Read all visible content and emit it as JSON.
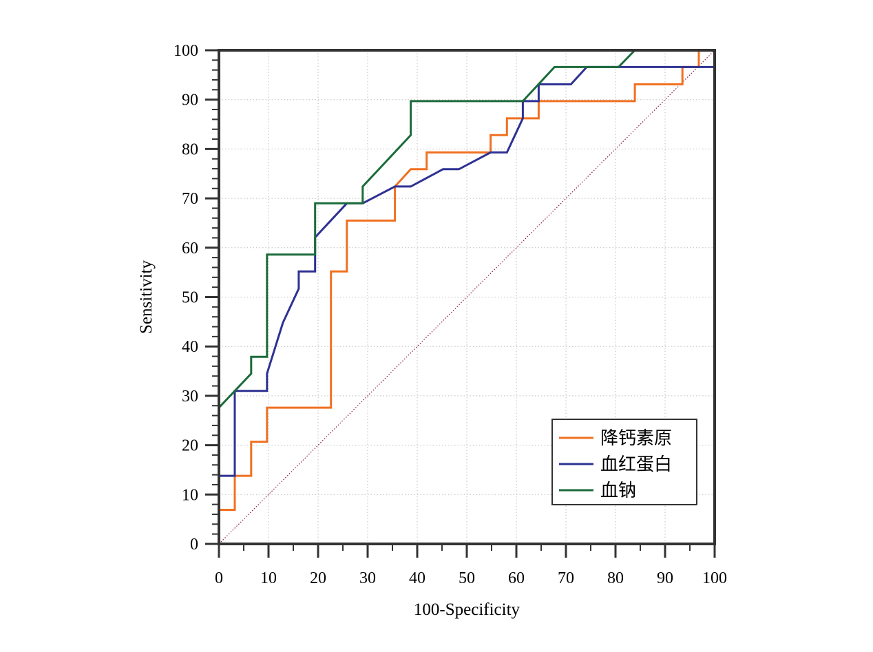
{
  "chart_data": {
    "type": "line",
    "title": "",
    "xlabel": "100-Specificity",
    "ylabel": "Sensitivity",
    "xlim": [
      0,
      100
    ],
    "ylim": [
      0,
      100
    ],
    "xticks": [
      0,
      10,
      20,
      30,
      40,
      50,
      60,
      70,
      80,
      90,
      100
    ],
    "yticks": [
      0,
      10,
      20,
      30,
      40,
      50,
      60,
      70,
      80,
      90,
      100
    ],
    "grid": true,
    "legend_position": "bottom-right",
    "reference_line": {
      "from": [
        0,
        0
      ],
      "to": [
        100,
        100
      ],
      "color": "#8b1c2b",
      "style": "dotted"
    },
    "series": [
      {
        "name": "降钙素原",
        "color": "#f07021",
        "points": [
          [
            0,
            0
          ],
          [
            0,
            6.9
          ],
          [
            3.2,
            6.9
          ],
          [
            3.2,
            13.8
          ],
          [
            6.5,
            13.8
          ],
          [
            6.5,
            20.7
          ],
          [
            9.7,
            20.7
          ],
          [
            9.7,
            27.6
          ],
          [
            22.6,
            27.6
          ],
          [
            22.6,
            55.2
          ],
          [
            25.8,
            55.2
          ],
          [
            25.8,
            65.5
          ],
          [
            35.5,
            65.5
          ],
          [
            35.5,
            72.4
          ],
          [
            38.7,
            75.9
          ],
          [
            41.9,
            75.9
          ],
          [
            41.9,
            79.3
          ],
          [
            54.8,
            79.3
          ],
          [
            54.8,
            82.8
          ],
          [
            58.1,
            82.8
          ],
          [
            58.1,
            86.2
          ],
          [
            64.5,
            86.2
          ],
          [
            64.5,
            89.7
          ],
          [
            83.9,
            89.7
          ],
          [
            83.9,
            93.1
          ],
          [
            93.5,
            93.1
          ],
          [
            93.5,
            96.6
          ],
          [
            96.8,
            96.6
          ],
          [
            96.8,
            100
          ],
          [
            100,
            100
          ]
        ]
      },
      {
        "name": "血红蛋白",
        "color": "#2e3192",
        "points": [
          [
            0,
            0
          ],
          [
            0,
            13.8
          ],
          [
            3.2,
            13.8
          ],
          [
            3.2,
            31.0
          ],
          [
            9.7,
            31.0
          ],
          [
            9.7,
            34.5
          ],
          [
            12.9,
            44.8
          ],
          [
            16.1,
            51.7
          ],
          [
            16.1,
            55.2
          ],
          [
            19.4,
            55.2
          ],
          [
            19.4,
            62.1
          ],
          [
            25.8,
            69.0
          ],
          [
            29.0,
            69.0
          ],
          [
            35.5,
            72.4
          ],
          [
            38.7,
            72.4
          ],
          [
            45.2,
            75.9
          ],
          [
            48.4,
            75.9
          ],
          [
            54.8,
            79.3
          ],
          [
            58.1,
            79.3
          ],
          [
            61.3,
            86.2
          ],
          [
            61.3,
            89.7
          ],
          [
            64.5,
            89.7
          ],
          [
            64.5,
            93.1
          ],
          [
            71.0,
            93.1
          ],
          [
            74.2,
            96.6
          ],
          [
            100,
            96.6
          ],
          [
            100,
            100
          ]
        ]
      },
      {
        "name": "血钠",
        "color": "#1b6b3a",
        "points": [
          [
            0,
            0
          ],
          [
            0,
            27.6
          ],
          [
            6.5,
            34.5
          ],
          [
            6.5,
            37.9
          ],
          [
            9.7,
            37.9
          ],
          [
            9.7,
            58.6
          ],
          [
            19.4,
            58.6
          ],
          [
            19.4,
            69.0
          ],
          [
            29.0,
            69.0
          ],
          [
            29.0,
            72.4
          ],
          [
            38.7,
            82.8
          ],
          [
            38.7,
            89.7
          ],
          [
            61.3,
            89.7
          ],
          [
            67.7,
            96.6
          ],
          [
            80.6,
            96.6
          ],
          [
            83.9,
            100
          ],
          [
            100,
            100
          ]
        ]
      }
    ]
  }
}
